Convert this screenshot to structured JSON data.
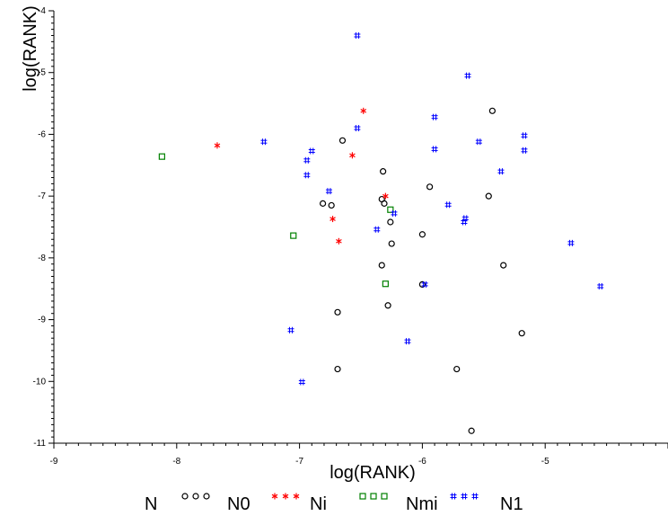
{
  "chart_data": {
    "type": "scatter",
    "xlabel": "log(RANK)",
    "ylabel": "log(RANK)",
    "xlim": [
      -9,
      -4
    ],
    "ylim": [
      -11,
      -4
    ],
    "xticks": [
      "-9",
      "-8",
      "-7",
      "-6",
      "-5"
    ],
    "yticks": [
      "-4",
      "-5",
      "-6",
      "-7",
      "-8",
      "-9",
      "-10",
      "-11"
    ],
    "grid": false,
    "legend": {
      "placement": "bottom",
      "title": "N",
      "entries": [
        {
          "symbol": "circle",
          "name": "N0",
          "color": "#000000"
        },
        {
          "symbol": "star",
          "name": "Ni",
          "color": "#ff0000"
        },
        {
          "symbol": "square",
          "name": "Nmi",
          "color": "#008000"
        },
        {
          "symbol": "hash",
          "name": "N1",
          "color": "#0000ff"
        }
      ]
    },
    "series": [
      {
        "name": "N0",
        "symbol": "circle",
        "color": "#000000",
        "points": [
          {
            "x": -6.65,
            "y": -6.1
          },
          {
            "x": -6.32,
            "y": -6.6
          },
          {
            "x": -5.94,
            "y": -6.85
          },
          {
            "x": -5.43,
            "y": -5.62
          },
          {
            "x": -6.33,
            "y": -7.05
          },
          {
            "x": -6.31,
            "y": -7.12
          },
          {
            "x": -6.81,
            "y": -7.12
          },
          {
            "x": -6.74,
            "y": -7.15
          },
          {
            "x": -5.46,
            "y": -7.0
          },
          {
            "x": -6.26,
            "y": -7.42
          },
          {
            "x": -6.0,
            "y": -7.62
          },
          {
            "x": -6.25,
            "y": -7.77
          },
          {
            "x": -5.34,
            "y": -8.12
          },
          {
            "x": -6.33,
            "y": -8.12
          },
          {
            "x": -6.0,
            "y": -8.43
          },
          {
            "x": -6.28,
            "y": -8.77
          },
          {
            "x": -6.69,
            "y": -8.88
          },
          {
            "x": -5.19,
            "y": -9.22
          },
          {
            "x": -6.69,
            "y": -9.8
          },
          {
            "x": -5.72,
            "y": -9.8
          },
          {
            "x": -5.6,
            "y": -10.8
          }
        ]
      },
      {
        "name": "Ni",
        "symbol": "star",
        "color": "#ff0000",
        "points": [
          {
            "x": -6.48,
            "y": -5.62
          },
          {
            "x": -7.67,
            "y": -6.18
          },
          {
            "x": -6.57,
            "y": -6.34
          },
          {
            "x": -6.3,
            "y": -7.0
          },
          {
            "x": -6.73,
            "y": -7.37
          },
          {
            "x": -6.68,
            "y": -7.73
          }
        ]
      },
      {
        "name": "Nmi",
        "symbol": "square",
        "color": "#008000",
        "points": [
          {
            "x": -8.12,
            "y": -6.36
          },
          {
            "x": -6.26,
            "y": -7.22
          },
          {
            "x": -7.05,
            "y": -7.64
          },
          {
            "x": -6.3,
            "y": -8.42
          }
        ]
      },
      {
        "name": "N1",
        "symbol": "hash",
        "color": "#0000ff",
        "points": [
          {
            "x": -6.53,
            "y": -4.4
          },
          {
            "x": -5.63,
            "y": -5.05
          },
          {
            "x": -5.9,
            "y": -5.72
          },
          {
            "x": -6.53,
            "y": -5.9
          },
          {
            "x": -7.29,
            "y": -6.12
          },
          {
            "x": -5.54,
            "y": -6.12
          },
          {
            "x": -5.17,
            "y": -6.02
          },
          {
            "x": -6.9,
            "y": -6.27
          },
          {
            "x": -5.9,
            "y": -6.24
          },
          {
            "x": -5.17,
            "y": -6.26
          },
          {
            "x": -6.94,
            "y": -6.42
          },
          {
            "x": -5.36,
            "y": -6.6
          },
          {
            "x": -6.94,
            "y": -6.66
          },
          {
            "x": -6.76,
            "y": -6.92
          },
          {
            "x": -5.79,
            "y": -7.14
          },
          {
            "x": -6.23,
            "y": -7.28
          },
          {
            "x": -5.65,
            "y": -7.36
          },
          {
            "x": -5.66,
            "y": -7.42
          },
          {
            "x": -6.37,
            "y": -7.54
          },
          {
            "x": -4.79,
            "y": -7.76
          },
          {
            "x": -5.98,
            "y": -8.43
          },
          {
            "x": -4.55,
            "y": -8.46
          },
          {
            "x": -7.07,
            "y": -9.17
          },
          {
            "x": -6.12,
            "y": -9.35
          },
          {
            "x": -6.98,
            "y": -10.01
          }
        ]
      }
    ]
  }
}
